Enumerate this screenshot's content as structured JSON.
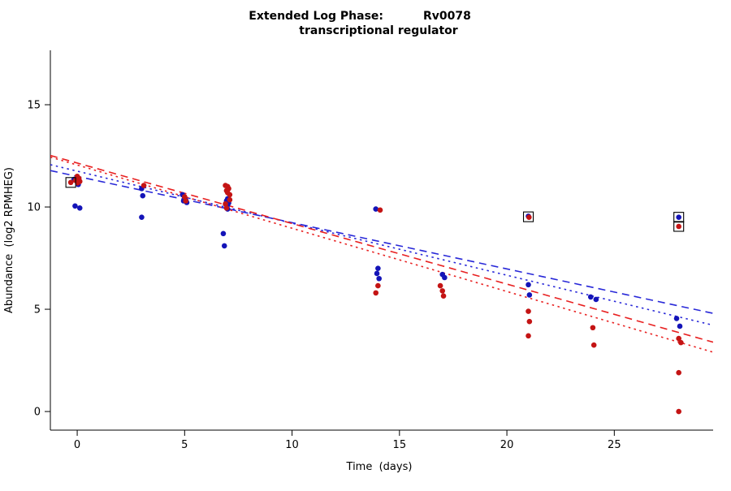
{
  "title": {
    "part1": "Extended Log Phase:",
    "part2": "Rv0078",
    "line2": "transcriptional regulator"
  },
  "chart_data": {
    "type": "scatter",
    "xlabel": "Time  (days)",
    "ylabel": "Abundance  (log2 RPMHEG)",
    "x_ticks": [
      0,
      5,
      10,
      15,
      20,
      25
    ],
    "y_ticks": [
      0,
      5,
      10,
      15
    ],
    "xlim": [
      -1.25,
      29.6
    ],
    "ylim": [
      -0.91,
      17.66
    ],
    "grid": false,
    "legend": "none",
    "colors": {
      "blue_points": "#1414b8",
      "red_points": "#c41414",
      "blue_line": "#2828d8",
      "red_line": "#e82020",
      "flag_square": "#000000",
      "axis": "#000000"
    },
    "series": [
      {
        "name": "blue-replicates",
        "color_key": "blue_points",
        "points": [
          [
            -0.15,
            11.35
          ],
          [
            0,
            11.45
          ],
          [
            0.1,
            11.25
          ],
          [
            0.05,
            11.1
          ],
          [
            -0.1,
            10.05
          ],
          [
            0.12,
            9.95
          ],
          [
            3,
            10.9
          ],
          [
            3.05,
            10.55
          ],
          [
            3,
            9.5
          ],
          [
            4.9,
            10.6
          ],
          [
            5,
            10.45
          ],
          [
            5.05,
            10.35
          ],
          [
            4.95,
            10.3
          ],
          [
            5.1,
            10.22
          ],
          [
            7,
            10.4
          ],
          [
            6.95,
            10.3
          ],
          [
            7.05,
            10.2
          ],
          [
            7,
            10.1
          ],
          [
            7,
            9.9
          ],
          [
            6.8,
            8.7
          ],
          [
            6.85,
            8.1
          ],
          [
            13.9,
            9.9
          ],
          [
            14,
            7.0
          ],
          [
            13.95,
            6.75
          ],
          [
            14.05,
            6.5
          ],
          [
            17,
            6.7
          ],
          [
            17.1,
            6.55
          ],
          [
            21,
            6.2
          ],
          [
            21.05,
            5.7
          ],
          [
            23.9,
            5.6
          ],
          [
            24.15,
            5.48
          ],
          [
            27.9,
            4.55
          ],
          [
            28.05,
            4.17
          ],
          [
            21,
            9.55
          ],
          [
            28,
            9.5
          ]
        ]
      },
      {
        "name": "red-replicates",
        "color_key": "red_points",
        "points": [
          [
            0,
            11.5
          ],
          [
            0.08,
            11.4
          ],
          [
            -0.08,
            11.3
          ],
          [
            0.12,
            11.25
          ],
          [
            0.02,
            11.18
          ],
          [
            -0.3,
            11.2
          ],
          [
            3.1,
            11.05
          ],
          [
            5,
            10.5
          ],
          [
            5.05,
            10.3
          ],
          [
            6.9,
            11.05
          ],
          [
            7,
            11.0
          ],
          [
            7.05,
            10.9
          ],
          [
            6.95,
            10.8
          ],
          [
            7,
            10.7
          ],
          [
            7.1,
            10.6
          ],
          [
            7.1,
            10.35
          ],
          [
            6.9,
            10.15
          ],
          [
            6.95,
            9.95
          ],
          [
            14.1,
            9.85
          ],
          [
            14,
            6.15
          ],
          [
            13.9,
            5.8
          ],
          [
            16.9,
            6.15
          ],
          [
            17,
            5.9
          ],
          [
            17.05,
            5.65
          ],
          [
            21,
            4.9
          ],
          [
            21.05,
            4.4
          ],
          [
            21,
            3.7
          ],
          [
            24,
            4.1
          ],
          [
            24.05,
            3.25
          ],
          [
            28,
            3.57
          ],
          [
            28.1,
            3.37
          ],
          [
            28,
            1.9
          ],
          [
            28,
            0.0
          ],
          [
            28,
            9.05
          ],
          [
            21.03,
            9.5
          ]
        ]
      }
    ],
    "flagged_points": [
      [
        -0.3,
        11.2
      ],
      [
        21,
        9.52
      ],
      [
        28,
        9.5
      ],
      [
        28,
        9.05
      ]
    ],
    "trend_lines": [
      {
        "name": "blue-dashed",
        "color_key": "blue_line",
        "style": "dashed",
        "x1": -1.25,
        "y1": 11.78,
        "x2": 29.6,
        "y2": 4.8
      },
      {
        "name": "blue-dotted",
        "color_key": "blue_line",
        "style": "dotted",
        "x1": -1.25,
        "y1": 12.07,
        "x2": 29.6,
        "y2": 4.22
      },
      {
        "name": "red-dashed",
        "color_key": "red_line",
        "style": "dashed",
        "x1": -1.25,
        "y1": 12.52,
        "x2": 29.6,
        "y2": 3.39
      },
      {
        "name": "red-dotted",
        "color_key": "red_line",
        "style": "dotted",
        "x1": -1.25,
        "y1": 12.44,
        "x2": 29.6,
        "y2": 2.9
      }
    ]
  }
}
